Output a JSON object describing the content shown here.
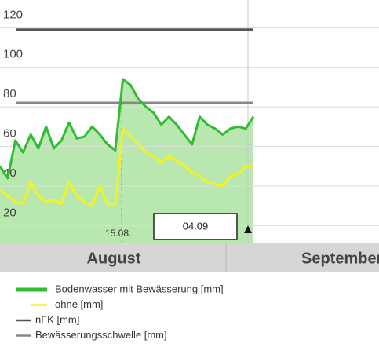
{
  "chart_data": {
    "type": "line",
    "categories": [
      null,
      null,
      null,
      null,
      null,
      null,
      null,
      null,
      null,
      null,
      null,
      null,
      null,
      null,
      null,
      null,
      null,
      null,
      null,
      null,
      null,
      null,
      null,
      null,
      null,
      null,
      null,
      null,
      null,
      null,
      null,
      null,
      null,
      null
    ],
    "series": [
      {
        "name": "Bodenwasser mit Bewässerung [mm]",
        "color": "#33bb33",
        "fill": "#b8e8b0",
        "values": [
          50,
          44,
          63,
          57,
          66,
          59,
          70,
          59,
          63,
          72,
          64,
          65,
          70,
          66,
          61,
          58,
          94,
          91,
          84,
          80,
          77,
          71,
          75,
          71,
          66,
          61,
          75,
          71,
          69,
          66,
          69,
          70,
          69,
          75
        ]
      },
      {
        "name": "ohne [mm]",
        "color": "#f2f222",
        "values": [
          38,
          35,
          32,
          31,
          42,
          35,
          32,
          33,
          31,
          42,
          35,
          32,
          30,
          40,
          31,
          30,
          69,
          65,
          61,
          57,
          55,
          52,
          55,
          53,
          50,
          47,
          45,
          42,
          41,
          40,
          45,
          46,
          50,
          50
        ]
      },
      {
        "name": "nFK [mm]",
        "color": "#555555",
        "value": 119
      },
      {
        "name": "Bewässerungsschwelle [mm]",
        "color": "#888888",
        "value": 82
      }
    ],
    "ylim": [
      11,
      134
    ],
    "yticks": [
      20,
      40,
      60,
      80,
      100,
      120
    ],
    "grid": true,
    "months": [
      "August",
      "September"
    ],
    "annotations": [
      "15.08.",
      "04.09"
    ]
  }
}
